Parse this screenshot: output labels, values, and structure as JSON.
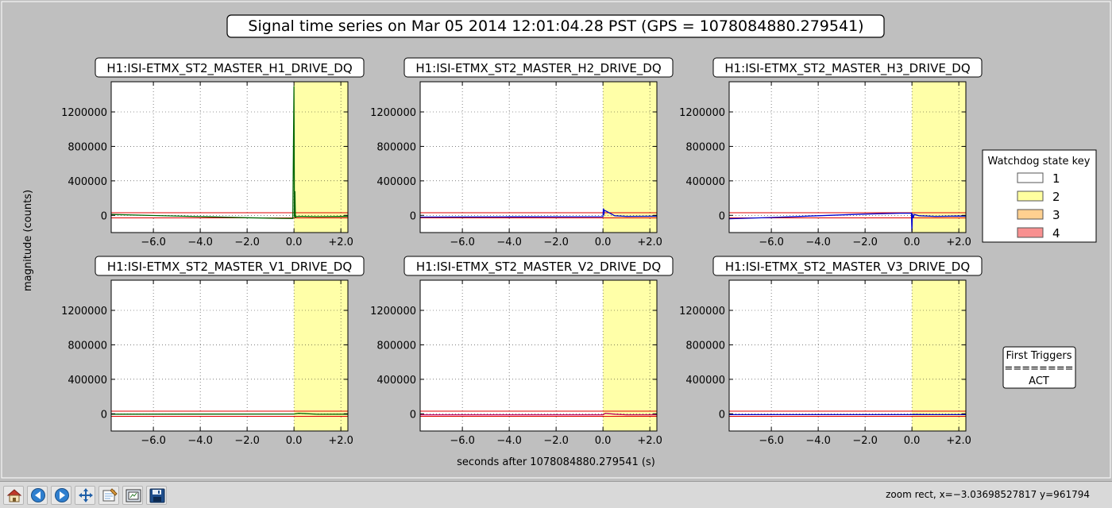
{
  "window": {
    "status_text": "zoom rect, x=−3.03698527817 y=961794",
    "toolbar": [
      {
        "name": "home-button",
        "icon": "home-icon"
      },
      {
        "name": "back-button",
        "icon": "arrow-left-icon"
      },
      {
        "name": "forward-button",
        "icon": "arrow-right-icon"
      },
      {
        "name": "pan-button",
        "icon": "move-icon"
      },
      {
        "name": "zoom-button",
        "icon": "zoom-rect-icon"
      },
      {
        "name": "subplots-button",
        "icon": "subplots-icon"
      },
      {
        "name": "save-button",
        "icon": "floppy-icon"
      }
    ]
  },
  "figure": {
    "title": "Signal time series on Mar 05 2014 12:01:04.28 PST (GPS = 1078084880.279541)",
    "ylabel": "magnitude (counts)",
    "xlabel": "seconds after 1078084880.279541 (s)",
    "legend": {
      "title": "Watchdog state key",
      "placement": "right",
      "entries": [
        {
          "label": "1",
          "color": "#ffffff"
        },
        {
          "label": "2",
          "color": "#ffffa0"
        },
        {
          "label": "3",
          "color": "#ffd090"
        },
        {
          "label": "4",
          "color": "#f89090"
        }
      ]
    },
    "triggers": {
      "title": "First Triggers",
      "separator": "========",
      "value": "ACT"
    }
  },
  "chart_data": {
    "type": "line",
    "xlim": [
      -7.8,
      2.3
    ],
    "ylim": [
      -200000,
      1550000
    ],
    "xticks": [
      -6.0,
      -4.0,
      -2.0,
      0.0,
      2.0
    ],
    "xtick_labels": [
      "−6.0",
      "−4.0",
      "−2.0",
      "0.0",
      "+2.0"
    ],
    "yticks": [
      0,
      400000,
      800000,
      1200000
    ],
    "ytick_labels": [
      "0",
      "400000",
      "800000",
      "1200000"
    ],
    "grid": true,
    "shaded_region": {
      "state": "2",
      "x": [
        0.0,
        2.3
      ],
      "color": "#ffffa8"
    },
    "threshold_lines": {
      "values": [
        30000,
        -30000
      ],
      "color": "#e00000"
    },
    "panels": [
      {
        "title": "H1:ISI-ETMX_ST2_MASTER_H1_DRIVE_DQ",
        "color": "#006400",
        "x": [
          -7.8,
          -6.0,
          -4.0,
          -2.0,
          -0.5,
          -0.05,
          0.0,
          0.02,
          0.04,
          0.06,
          0.08,
          0.3,
          1.0,
          2.0,
          2.3
        ],
        "y": [
          10000,
          -2000,
          -15000,
          -28000,
          -35000,
          -36000,
          1500000,
          -20000,
          280000,
          -30000,
          -15000,
          -12000,
          -16000,
          -13000,
          -12000
        ]
      },
      {
        "title": "H1:ISI-ETMX_ST2_MASTER_H2_DRIVE_DQ",
        "color": "#0000cc",
        "x": [
          -7.8,
          -4.0,
          0.0,
          0.02,
          0.04,
          0.06,
          0.5,
          1.0,
          2.3
        ],
        "y": [
          -20000,
          -18000,
          -16000,
          80000,
          5000,
          60000,
          -5000,
          -12000,
          -10000
        ]
      },
      {
        "title": "H1:ISI-ETMX_ST2_MASTER_H3_DRIVE_DQ",
        "color": "#0000cc",
        "x": [
          -7.8,
          -6.0,
          -4.0,
          -2.0,
          -0.5,
          -0.02,
          0.0,
          0.02,
          0.05,
          0.1,
          0.3,
          1.0,
          2.0,
          2.3
        ],
        "y": [
          -40000,
          -25000,
          -5000,
          15000,
          25000,
          25000,
          -190000,
          20000,
          -30000,
          10000,
          -5000,
          -12000,
          -8000,
          -10000
        ]
      },
      {
        "title": "H1:ISI-ETMX_ST2_MASTER_V1_DRIVE_DQ",
        "color": "#006400",
        "x": [
          -7.8,
          -4.0,
          0.0,
          0.2,
          1.0,
          2.3
        ],
        "y": [
          -5000,
          -4000,
          -3000,
          5000,
          -6000,
          -5000
        ]
      },
      {
        "title": "H1:ISI-ETMX_ST2_MASTER_V2_DRIVE_DQ",
        "color": "#c00060",
        "x": [
          -7.8,
          -4.0,
          0.0,
          0.1,
          0.5,
          1.0,
          2.3
        ],
        "y": [
          -12000,
          -12000,
          -12000,
          5000,
          -5000,
          -12000,
          -12000
        ]
      },
      {
        "title": "H1:ISI-ETMX_ST2_MASTER_V3_DRIVE_DQ",
        "color": "#0000cc",
        "x": [
          -7.8,
          -4.0,
          0.0,
          0.1,
          1.0,
          2.3
        ],
        "y": [
          -10000,
          -10000,
          -10000,
          -8000,
          -10000,
          -10000
        ]
      }
    ]
  }
}
